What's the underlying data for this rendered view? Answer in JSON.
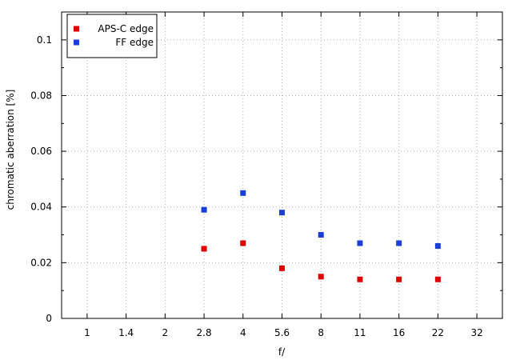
{
  "chart_data": {
    "type": "scatter",
    "xlabel": "f/",
    "ylabel": "chromatic aberration [%]",
    "categories": [
      "1",
      "1.4",
      "2",
      "2.8",
      "4",
      "5.6",
      "8",
      "11",
      "16",
      "22",
      "32"
    ],
    "ylim": [
      0,
      0.11
    ],
    "yticks": [
      0,
      0.02,
      0.04,
      0.06,
      0.08,
      0.1
    ],
    "ytick_labels": [
      "0",
      "0.02",
      "0.04",
      "0.06",
      "0.08",
      "0.1"
    ],
    "grid": true,
    "legend_position": "top-left",
    "series": [
      {
        "name": "APS-C edge",
        "color": "#e00000",
        "x": [
          "2.8",
          "4",
          "5.6",
          "8",
          "11",
          "16",
          "22"
        ],
        "values": [
          0.025,
          0.027,
          0.018,
          0.015,
          0.014,
          0.014,
          0.014
        ]
      },
      {
        "name": "FF edge",
        "color": "#1a3fd6",
        "x": [
          "2.8",
          "4",
          "5.6",
          "8",
          "11",
          "16",
          "22"
        ],
        "values": [
          0.039,
          0.045,
          0.038,
          0.03,
          0.027,
          0.027,
          0.026
        ]
      }
    ]
  }
}
